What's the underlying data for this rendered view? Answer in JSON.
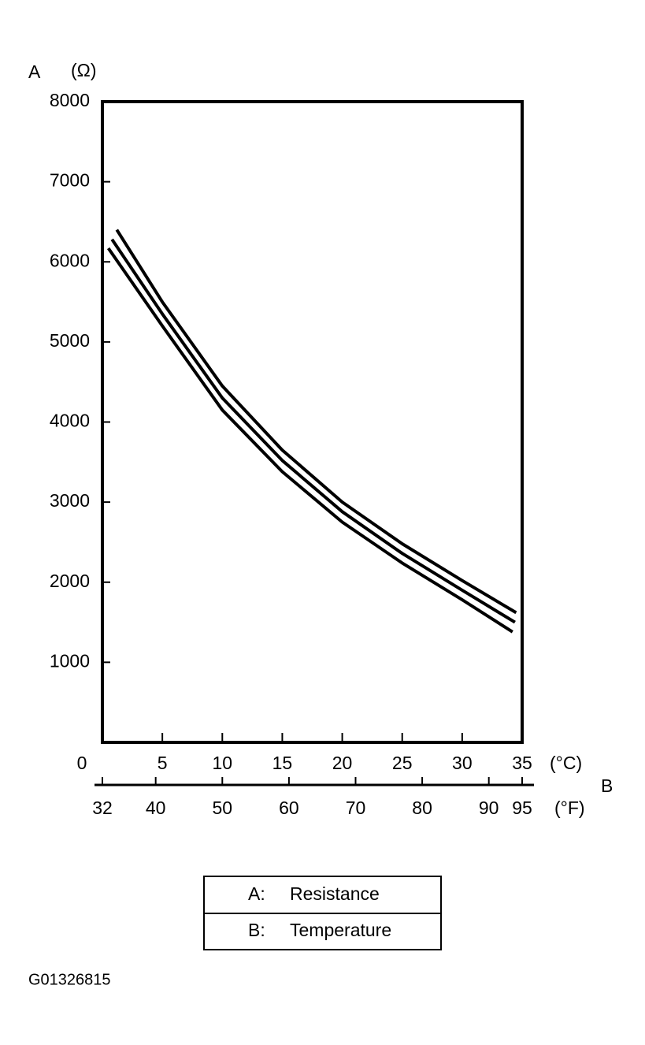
{
  "chart_data": {
    "type": "line",
    "y_axis_label": "A",
    "y_unit": "(Ω)",
    "x_axis_label": "B",
    "x_unit": "(°C)",
    "x2_unit": "(°F)",
    "ylim": [
      0,
      8000
    ],
    "yticks": [
      1000,
      2000,
      3000,
      4000,
      5000,
      6000,
      7000,
      8000
    ],
    "xlim": [
      0,
      35
    ],
    "xticks": [
      0,
      5,
      10,
      15,
      20,
      25,
      30,
      35
    ],
    "x2lim": [
      32,
      95
    ],
    "x2ticks": [
      32,
      40,
      50,
      60,
      70,
      80,
      90,
      95
    ],
    "series": [
      {
        "color": "#000000",
        "x": [
          1.2,
          5,
          10,
          15,
          20,
          25,
          30,
          34.5
        ],
        "values": [
          6400,
          5500,
          4450,
          3650,
          3000,
          2480,
          2020,
          1620
        ]
      },
      {
        "color": "#000000",
        "x": [
          0.8,
          5,
          10,
          15,
          20,
          25,
          30,
          34.4
        ],
        "values": [
          6280,
          5350,
          4300,
          3520,
          2880,
          2360,
          1900,
          1500
        ]
      },
      {
        "color": "#000000",
        "x": [
          0.5,
          5,
          10,
          15,
          20,
          25,
          30,
          34.2
        ],
        "values": [
          6170,
          5200,
          4150,
          3380,
          2750,
          2240,
          1780,
          1380
        ]
      }
    ],
    "legend_table": [
      [
        "A:",
        "Resistance"
      ],
      [
        "B:",
        "Temperature"
      ]
    ],
    "figure_id": "G01326815"
  }
}
